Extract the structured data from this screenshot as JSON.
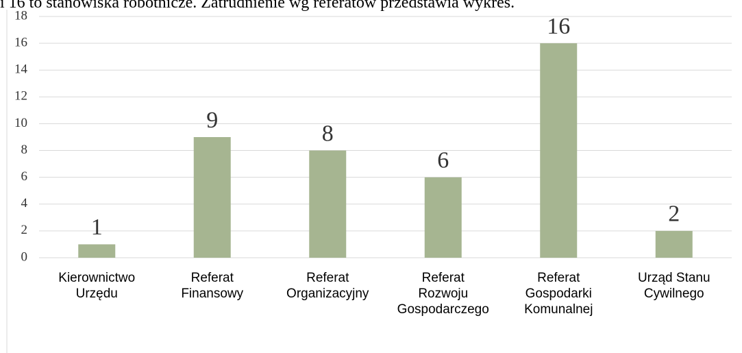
{
  "caption": "i 16 to stanowiska robotnicze. Zatrudnienie wg referatów przedstawia wykres.",
  "chart_data": {
    "type": "bar",
    "categories": [
      "Kierownictwo Urzędu",
      "Referat Finansowy",
      "Referat Organizacyjny",
      "Referat Rozwoju Gospodarczego",
      "Referat Gospodarki Komunalnej",
      "Urząd Stanu Cywilnego"
    ],
    "values": [
      1,
      9,
      8,
      6,
      16,
      2
    ],
    "color": "#a6b591",
    "ylim": [
      0,
      18
    ],
    "yticks": [
      0,
      2,
      4,
      6,
      8,
      10,
      12,
      14,
      16,
      18
    ],
    "grid": true
  }
}
